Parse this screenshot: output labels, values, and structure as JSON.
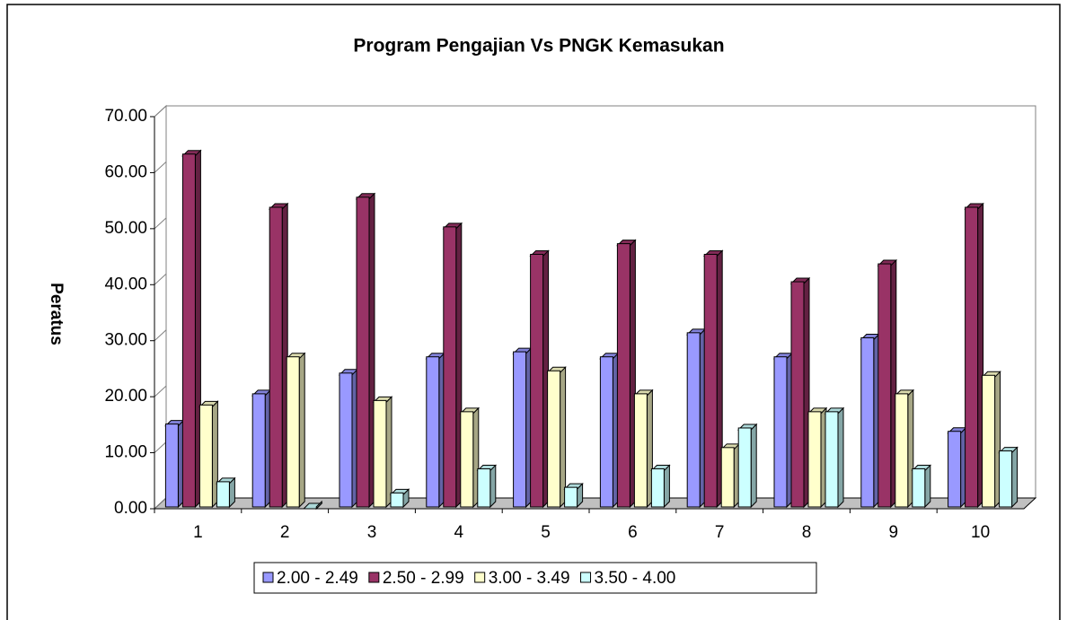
{
  "chart_data": {
    "type": "bar3d",
    "title": "Program Pengajian Vs PNGK Kemasukan",
    "y_label": "Peratus",
    "categories": [
      "1",
      "2",
      "3",
      "4",
      "5",
      "6",
      "7",
      "8",
      "9",
      "10"
    ],
    "series": [
      {
        "name": "2.00 - 2.49",
        "color": "#9999ff",
        "values": [
          14.8,
          20.2,
          23.9,
          26.8,
          27.7,
          26.8,
          31.1,
          26.8,
          30.2,
          13.5
        ]
      },
      {
        "name": "2.50 - 2.99",
        "color": "#993366",
        "values": [
          63.0,
          53.5,
          55.3,
          50.0,
          45.1,
          47.0,
          45.1,
          40.2,
          43.4,
          53.5
        ]
      },
      {
        "name": "3.00 - 3.49",
        "color": "#ffffcc",
        "values": [
          18.2,
          26.8,
          19.0,
          17.0,
          24.3,
          20.2,
          10.6,
          17.0,
          20.2,
          23.5
        ]
      },
      {
        "name": "3.50 - 4.00",
        "color": "#ccffff",
        "values": [
          4.5,
          0.0,
          2.5,
          6.8,
          3.5,
          6.8,
          14.1,
          17.0,
          6.8,
          10.0
        ]
      }
    ],
    "ylim": [
      0,
      70
    ],
    "yticks": [
      {
        "value": 0,
        "label": "0.00"
      },
      {
        "value": 10,
        "label": "10.00"
      },
      {
        "value": 20,
        "label": "20.00"
      },
      {
        "value": 30,
        "label": "30.00"
      },
      {
        "value": 40,
        "label": "40.00"
      },
      {
        "value": 50,
        "label": "50.00"
      },
      {
        "value": 60,
        "label": "60.00"
      },
      {
        "value": 70,
        "label": "70.00"
      }
    ],
    "legend": "bottom"
  }
}
